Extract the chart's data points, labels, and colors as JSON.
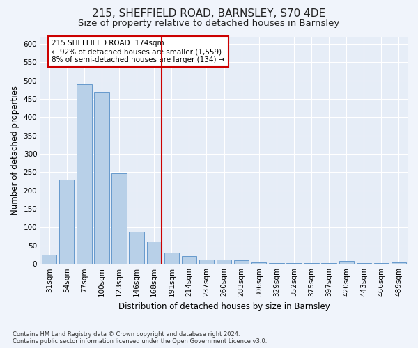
{
  "title1": "215, SHEFFIELD ROAD, BARNSLEY, S70 4DE",
  "title2": "Size of property relative to detached houses in Barnsley",
  "xlabel": "Distribution of detached houses by size in Barnsley",
  "ylabel": "Number of detached properties",
  "categories": [
    "31sqm",
    "54sqm",
    "77sqm",
    "100sqm",
    "123sqm",
    "146sqm",
    "168sqm",
    "191sqm",
    "214sqm",
    "237sqm",
    "260sqm",
    "283sqm",
    "306sqm",
    "329sqm",
    "352sqm",
    "375sqm",
    "397sqm",
    "420sqm",
    "443sqm",
    "466sqm",
    "489sqm"
  ],
  "values": [
    25,
    230,
    490,
    470,
    248,
    88,
    62,
    30,
    22,
    12,
    11,
    10,
    5,
    2,
    2,
    2,
    2,
    7,
    2,
    2,
    5
  ],
  "bar_color": "#b8d0e8",
  "bar_edge_color": "#6699cc",
  "highlight_line_color": "#cc0000",
  "annotation_text": "215 SHEFFIELD ROAD: 174sqm\n← 92% of detached houses are smaller (1,559)\n8% of semi-detached houses are larger (134) →",
  "annotation_box_color": "#cc0000",
  "ylim": [
    0,
    620
  ],
  "yticks": [
    0,
    50,
    100,
    150,
    200,
    250,
    300,
    350,
    400,
    450,
    500,
    550,
    600
  ],
  "footnote": "Contains HM Land Registry data © Crown copyright and database right 2024.\nContains public sector information licensed under the Open Government Licence v3.0.",
  "bg_color": "#f0f4fb",
  "plot_bg_color": "#e6edf7",
  "grid_color": "#ffffff",
  "title_fontsize": 11,
  "subtitle_fontsize": 9.5,
  "axis_label_fontsize": 8.5,
  "tick_fontsize": 7.5,
  "footnote_fontsize": 6.0
}
